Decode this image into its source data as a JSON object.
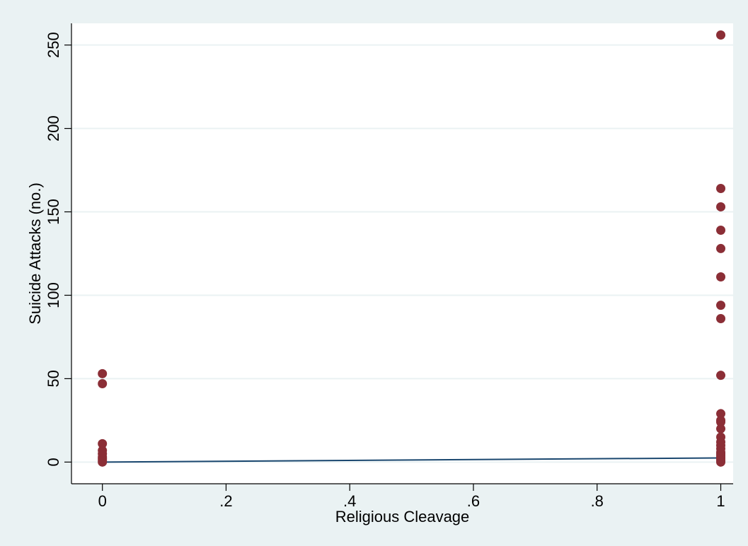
{
  "chart_data": {
    "type": "scatter",
    "title": "",
    "xlabel": "Religious Cleavage",
    "ylabel": "Suicide Attacks (no.)",
    "xlim": [
      -0.05,
      1.02
    ],
    "ylim": [
      -13,
      263
    ],
    "xticks": [
      0,
      0.2,
      0.4,
      0.6,
      0.8,
      1
    ],
    "xtick_labels": [
      "0",
      ".2",
      ".4",
      ".6",
      ".8",
      "1"
    ],
    "yticks": [
      0,
      50,
      100,
      150,
      200,
      250
    ],
    "ytick_labels": [
      "0",
      "50",
      "100",
      "150",
      "200",
      "250"
    ],
    "grid": "horizontal",
    "legend": "none",
    "series": [
      {
        "kind": "scatter",
        "color": "#8b2e36",
        "points": [
          {
            "x": 0,
            "y": 53
          },
          {
            "x": 0,
            "y": 47
          },
          {
            "x": 0,
            "y": 11
          },
          {
            "x": 0,
            "y": 7
          },
          {
            "x": 0,
            "y": 5
          },
          {
            "x": 0,
            "y": 3
          },
          {
            "x": 0,
            "y": 2
          },
          {
            "x": 0,
            "y": 1
          },
          {
            "x": 0,
            "y": 0
          },
          {
            "x": 1,
            "y": 256
          },
          {
            "x": 1,
            "y": 164
          },
          {
            "x": 1,
            "y": 153
          },
          {
            "x": 1,
            "y": 139
          },
          {
            "x": 1,
            "y": 128
          },
          {
            "x": 1,
            "y": 111
          },
          {
            "x": 1,
            "y": 94
          },
          {
            "x": 1,
            "y": 86
          },
          {
            "x": 1,
            "y": 52
          },
          {
            "x": 1,
            "y": 29
          },
          {
            "x": 1,
            "y": 25
          },
          {
            "x": 1,
            "y": 24
          },
          {
            "x": 1,
            "y": 20
          },
          {
            "x": 1,
            "y": 15
          },
          {
            "x": 1,
            "y": 12
          },
          {
            "x": 1,
            "y": 10
          },
          {
            "x": 1,
            "y": 8
          },
          {
            "x": 1,
            "y": 6
          },
          {
            "x": 1,
            "y": 5
          },
          {
            "x": 1,
            "y": 4
          },
          {
            "x": 1,
            "y": 3
          },
          {
            "x": 1,
            "y": 2
          },
          {
            "x": 1,
            "y": 1
          },
          {
            "x": 1,
            "y": 0
          }
        ]
      },
      {
        "kind": "line",
        "color": "#1a476f",
        "points": [
          {
            "x": 0,
            "y": 0
          },
          {
            "x": 1,
            "y": 2.5
          }
        ]
      }
    ]
  },
  "style": {
    "page_bg": "#eaf2f3",
    "plot_bg": "#ffffff",
    "grid_color": "#eaf2f3",
    "axis_color": "#000000"
  }
}
